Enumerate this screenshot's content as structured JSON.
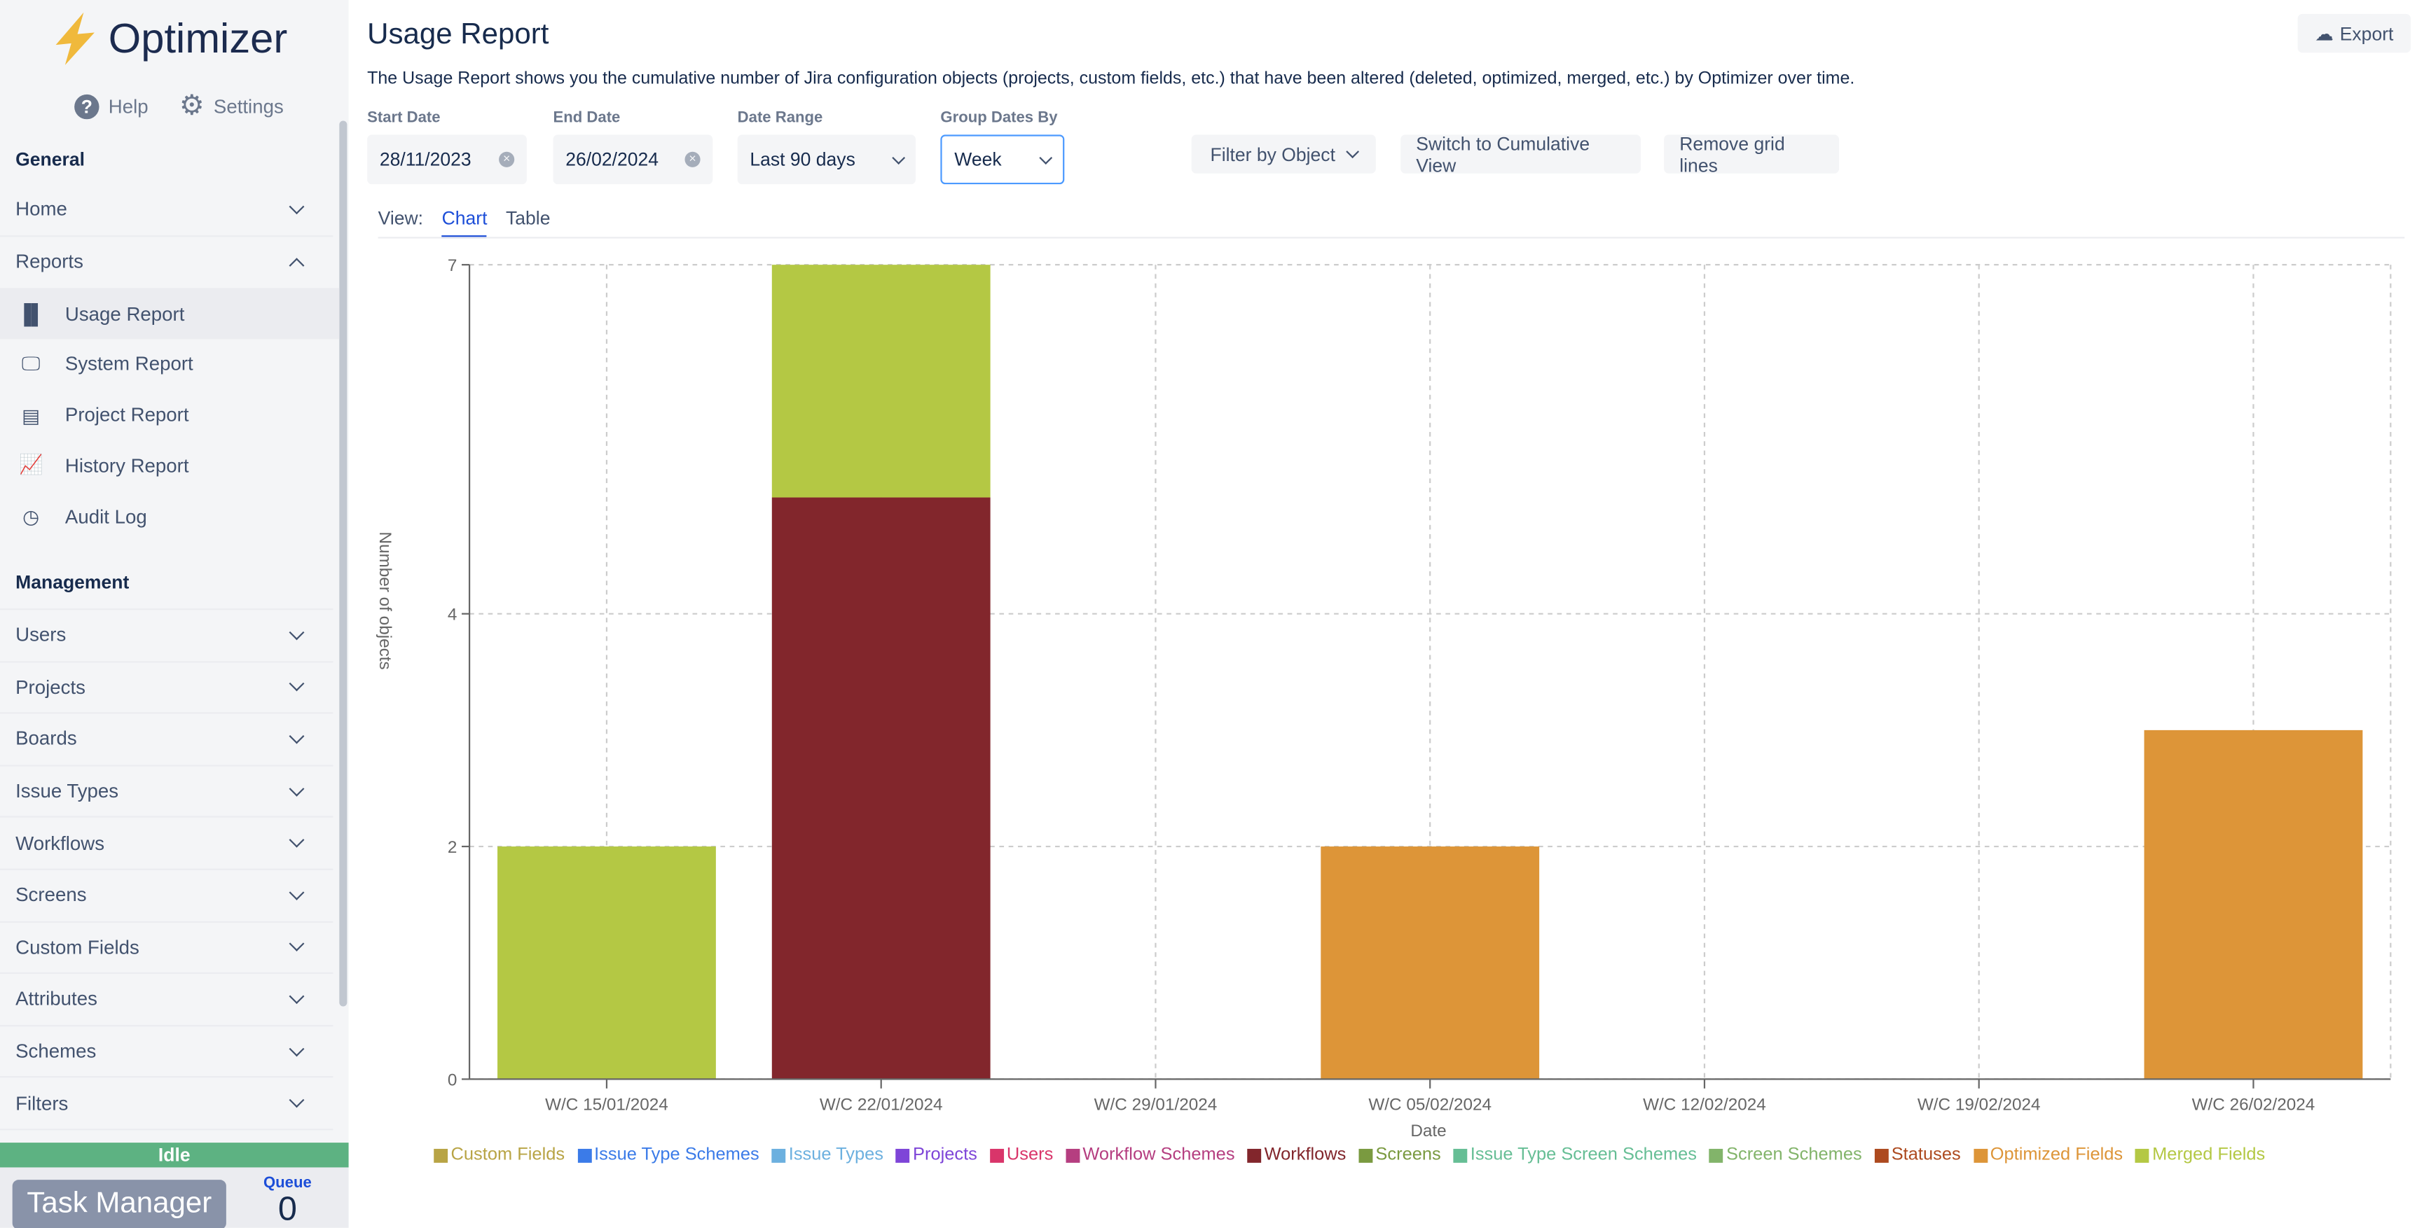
{
  "sidebar": {
    "app_name": "Optimizer",
    "help": "Help",
    "settings": "Settings",
    "general_heading": "General",
    "home": "Home",
    "reports": "Reports",
    "report_items": [
      {
        "label": "Usage Report",
        "icon": "bar-chart-icon"
      },
      {
        "label": "System Report",
        "icon": "monitor-icon"
      },
      {
        "label": "Project Report",
        "icon": "document-icon"
      },
      {
        "label": "History Report",
        "icon": "line-chart-icon"
      },
      {
        "label": "Audit Log",
        "icon": "clock-icon"
      }
    ],
    "management_heading": "Management",
    "management_items": [
      "Users",
      "Projects",
      "Boards",
      "Issue Types",
      "Workflows",
      "Screens",
      "Custom Fields",
      "Attributes",
      "Schemes",
      "Filters"
    ],
    "status": "Idle",
    "task_manager": "Task Manager",
    "queue_label": "Queue",
    "queue_count": "0"
  },
  "header": {
    "title": "Usage Report",
    "export": "Export",
    "description": "The Usage Report shows you the cumulative number of Jira configuration objects (projects, custom fields, etc.) that have been altered (deleted, optimized, merged, etc.) by Optimizer over time."
  },
  "filters": {
    "start_date_label": "Start Date",
    "start_date": "28/11/2023",
    "end_date_label": "End Date",
    "end_date": "26/02/2024",
    "date_range_label": "Date Range",
    "date_range": "Last 90 days",
    "group_label": "Group Dates By",
    "group": "Week",
    "filter_by_object": "Filter by Object",
    "cumulative": "Switch to Cumulative View",
    "remove_grid": "Remove grid lines"
  },
  "view": {
    "label": "View:",
    "tabs": [
      "Chart",
      "Table"
    ],
    "active": "Chart"
  },
  "chart_data": {
    "type": "bar",
    "stacked": true,
    "xlabel": "Date",
    "ylabel": "Number of objects",
    "yticks": [
      0,
      2,
      4,
      7
    ],
    "ylim": [
      0,
      7
    ],
    "grid": true,
    "legend_placement": "bottom",
    "categories": [
      "W/C 15/01/2024",
      "W/C 22/01/2024",
      "W/C 29/01/2024",
      "W/C 05/02/2024",
      "W/C 12/02/2024",
      "W/C 19/02/2024",
      "W/C 26/02/2024"
    ],
    "series": [
      {
        "name": "Custom Fields",
        "color": "#b8a445",
        "values": [
          0,
          0,
          0,
          0,
          0,
          0,
          0
        ]
      },
      {
        "name": "Issue Type Schemes",
        "color": "#3b7be8",
        "values": [
          0,
          0,
          0,
          0,
          0,
          0,
          0
        ]
      },
      {
        "name": "Issue Types",
        "color": "#6cb0df",
        "values": [
          0,
          0,
          0,
          0,
          0,
          0,
          0
        ]
      },
      {
        "name": "Projects",
        "color": "#7e45d8",
        "values": [
          0,
          0,
          0,
          0,
          0,
          0,
          0
        ]
      },
      {
        "name": "Users",
        "color": "#d9356a",
        "values": [
          0,
          0,
          0,
          0,
          0,
          0,
          0
        ]
      },
      {
        "name": "Workflow Schemes",
        "color": "#b53e80",
        "values": [
          0,
          0,
          0,
          0,
          0,
          0,
          0
        ]
      },
      {
        "name": "Workflows",
        "color": "#82262c",
        "values": [
          0,
          5,
          0,
          0,
          0,
          0,
          0
        ]
      },
      {
        "name": "Screens",
        "color": "#7a9a40",
        "values": [
          0,
          0,
          0,
          0,
          0,
          0,
          0
        ]
      },
      {
        "name": "Issue Type Screen Schemes",
        "color": "#66be95",
        "values": [
          0,
          0,
          0,
          0,
          0,
          0,
          0
        ]
      },
      {
        "name": "Screen Schemes",
        "color": "#82b46a",
        "values": [
          0,
          0,
          0,
          0,
          0,
          0,
          0
        ]
      },
      {
        "name": "Statuses",
        "color": "#ad4a1f",
        "values": [
          0,
          0,
          0,
          0,
          0,
          0,
          0
        ]
      },
      {
        "name": "Optimized Fields",
        "color": "#dd9538",
        "values": [
          0,
          0,
          0,
          2,
          0,
          0,
          3
        ]
      },
      {
        "name": "Merged Fields",
        "color": "#b4c844",
        "values": [
          2,
          2,
          0,
          0,
          0,
          0,
          0
        ]
      }
    ]
  }
}
